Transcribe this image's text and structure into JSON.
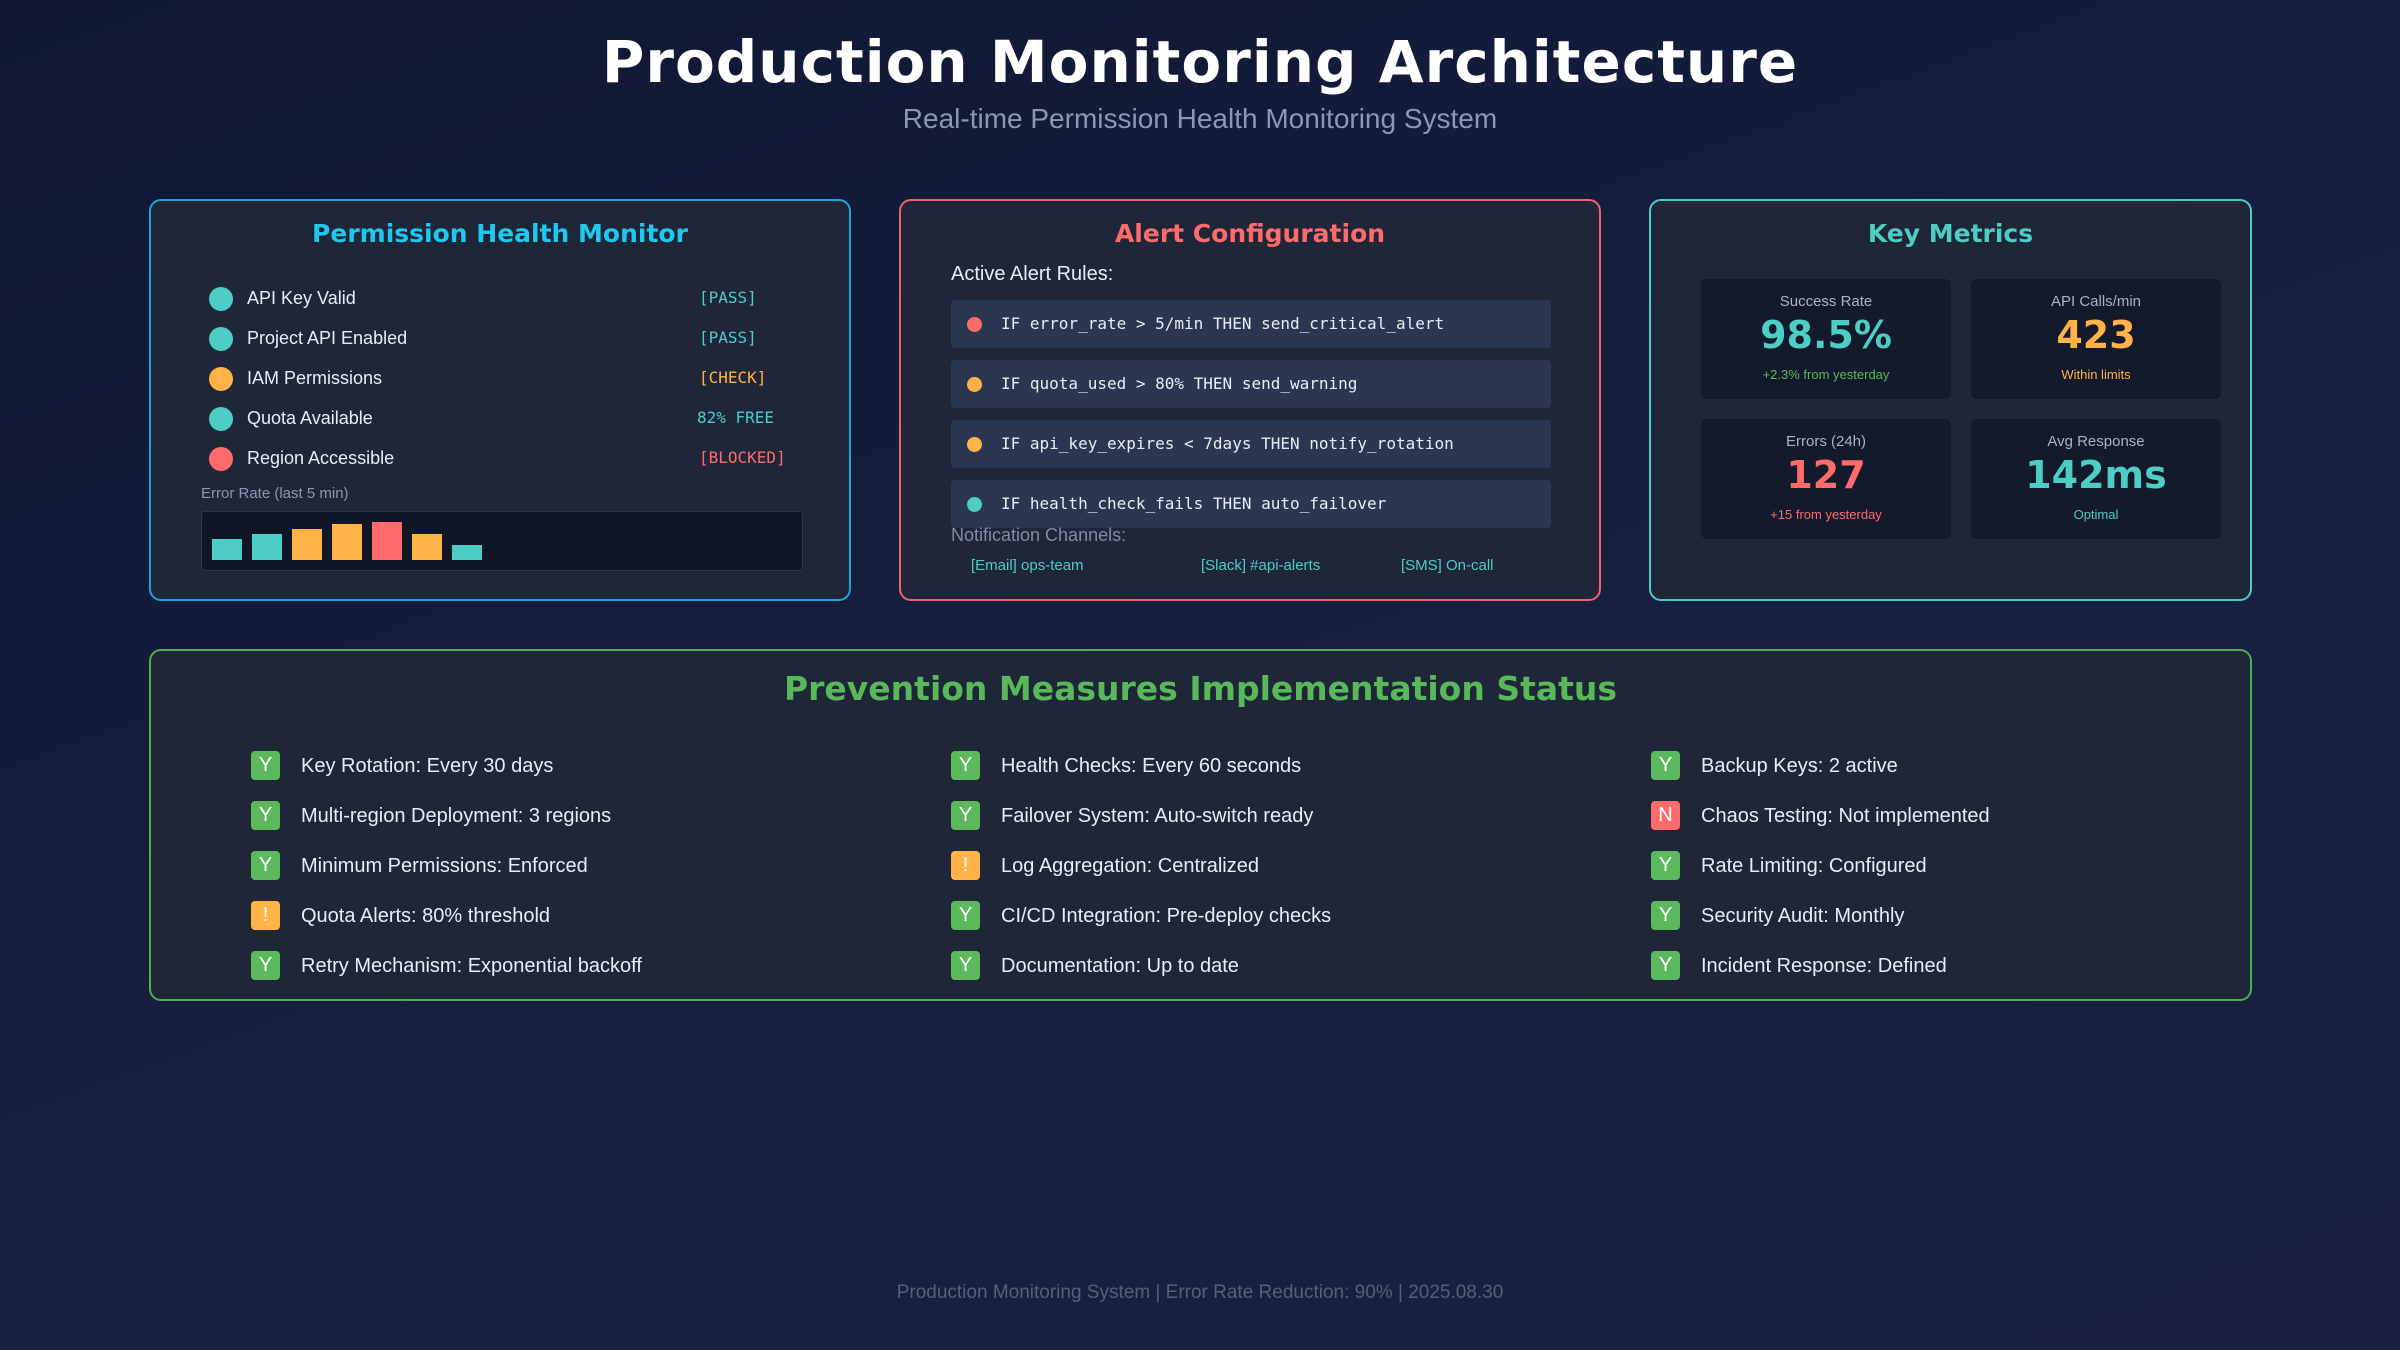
{
  "header": {
    "title": "Production Monitoring Architecture",
    "subtitle": "Real-time Permission Health Monitoring System"
  },
  "colors": {
    "pass": "#4ecdc4",
    "warn": "#ffb347",
    "fail": "#ff6b6b",
    "success_green": "#5cb85c"
  },
  "health_monitor": {
    "title": "Permission Health Monitor",
    "checks": [
      {
        "label": "API Key Valid",
        "status": "[PASS]",
        "state": "pass"
      },
      {
        "label": "Project API Enabled",
        "status": "[PASS]",
        "state": "pass"
      },
      {
        "label": "IAM Permissions",
        "status": "[CHECK]",
        "state": "warn"
      },
      {
        "label": "Quota Available",
        "status": "82% FREE",
        "state": "pass"
      },
      {
        "label": "Region Accessible",
        "status": "[BLOCKED]",
        "state": "fail"
      }
    ],
    "error_rate_label": "Error Rate (last 5 min)",
    "error_rate_bars": [
      {
        "level": 0.55,
        "state": "pass"
      },
      {
        "level": 0.68,
        "state": "pass"
      },
      {
        "level": 0.82,
        "state": "warn"
      },
      {
        "level": 0.95,
        "state": "warn"
      },
      {
        "level": 1.0,
        "state": "fail"
      },
      {
        "level": 0.68,
        "state": "warn"
      },
      {
        "level": 0.4,
        "state": "pass"
      }
    ]
  },
  "alert_config": {
    "title": "Alert Configuration",
    "rules_label": "Active Alert Rules:",
    "rules": [
      {
        "text": "IF error_rate > 5/min THEN send_critical_alert",
        "state": "fail"
      },
      {
        "text": "IF quota_used > 80% THEN send_warning",
        "state": "warn"
      },
      {
        "text": "IF api_key_expires < 7days THEN notify_rotation",
        "state": "warn"
      },
      {
        "text": "IF health_check_fails THEN auto_failover",
        "state": "pass"
      }
    ],
    "channels_label": "Notification Channels:",
    "channels": [
      "[Email] ops-team",
      "[Slack] #api-alerts",
      "[SMS] On-call"
    ]
  },
  "key_metrics": {
    "title": "Key Metrics",
    "cards": [
      {
        "label": "Success Rate",
        "value": "98.5%",
        "note": "+2.3% from yesterday",
        "value_state": "pass",
        "note_state": "success_green"
      },
      {
        "label": "API Calls/min",
        "value": "423",
        "note": "Within limits",
        "value_state": "warn",
        "note_state": "warn"
      },
      {
        "label": "Errors (24h)",
        "value": "127",
        "note": "+15 from yesterday",
        "value_state": "fail",
        "note_state": "fail"
      },
      {
        "label": "Avg Response",
        "value": "142ms",
        "note": "Optimal",
        "value_state": "pass",
        "note_state": "pass"
      }
    ]
  },
  "prevention": {
    "title": "Prevention Measures Implementation Status",
    "columns": [
      [
        {
          "badge": "Y",
          "text": "Key Rotation: Every 30 days"
        },
        {
          "badge": "Y",
          "text": "Multi-region Deployment: 3 regions"
        },
        {
          "badge": "Y",
          "text": "Minimum Permissions: Enforced"
        },
        {
          "badge": "!",
          "text": "Quota Alerts: 80% threshold"
        },
        {
          "badge": "Y",
          "text": "Retry Mechanism: Exponential backoff"
        }
      ],
      [
        {
          "badge": "Y",
          "text": "Health Checks: Every 60 seconds"
        },
        {
          "badge": "Y",
          "text": "Failover System: Auto-switch ready"
        },
        {
          "badge": "!",
          "text": "Log Aggregation: Centralized"
        },
        {
          "badge": "Y",
          "text": "CI/CD Integration: Pre-deploy checks"
        },
        {
          "badge": "Y",
          "text": "Documentation: Up to date"
        }
      ],
      [
        {
          "badge": "Y",
          "text": "Backup Keys: 2 active"
        },
        {
          "badge": "N",
          "text": "Chaos Testing: Not implemented"
        },
        {
          "badge": "Y",
          "text": "Rate Limiting: Configured"
        },
        {
          "badge": "Y",
          "text": "Security Audit: Monthly"
        },
        {
          "badge": "Y",
          "text": "Incident Response: Defined"
        }
      ]
    ]
  },
  "footer": {
    "text": "Production Monitoring System | Error Rate Reduction: 90% | 2025.08.30"
  }
}
